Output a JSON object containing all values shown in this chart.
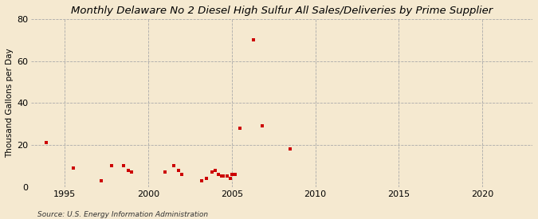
{
  "title": "Monthly Delaware No 2 Diesel High Sulfur All Sales/Deliveries by Prime Supplier",
  "ylabel": "Thousand Gallons per Day",
  "background_color": "#f5e9d0",
  "plot_bg_color": "#f5e9d0",
  "marker_color": "#cc0000",
  "marker": "s",
  "marker_size": 3.5,
  "xlim": [
    1993,
    2023
  ],
  "ylim": [
    0,
    80
  ],
  "yticks": [
    0,
    20,
    40,
    60,
    80
  ],
  "xticks": [
    1995,
    2000,
    2005,
    2010,
    2015,
    2020
  ],
  "source_text": "Source: U.S. Energy Information Administration",
  "data_points": [
    [
      1993.9,
      21
    ],
    [
      1995.5,
      9
    ],
    [
      1997.2,
      3
    ],
    [
      1997.8,
      10
    ],
    [
      1998.5,
      10
    ],
    [
      1998.8,
      8
    ],
    [
      1999.0,
      7
    ],
    [
      2001.0,
      7
    ],
    [
      2001.5,
      10
    ],
    [
      2001.8,
      8
    ],
    [
      2002.0,
      6
    ],
    [
      2003.2,
      3
    ],
    [
      2003.5,
      4
    ],
    [
      2003.8,
      7
    ],
    [
      2004.0,
      8
    ],
    [
      2004.2,
      6
    ],
    [
      2004.4,
      5
    ],
    [
      2004.5,
      5
    ],
    [
      2004.7,
      5
    ],
    [
      2004.9,
      4
    ],
    [
      2005.0,
      6
    ],
    [
      2005.2,
      6
    ],
    [
      2005.5,
      28
    ],
    [
      2006.3,
      70
    ],
    [
      2006.8,
      29
    ],
    [
      2008.5,
      18
    ]
  ]
}
